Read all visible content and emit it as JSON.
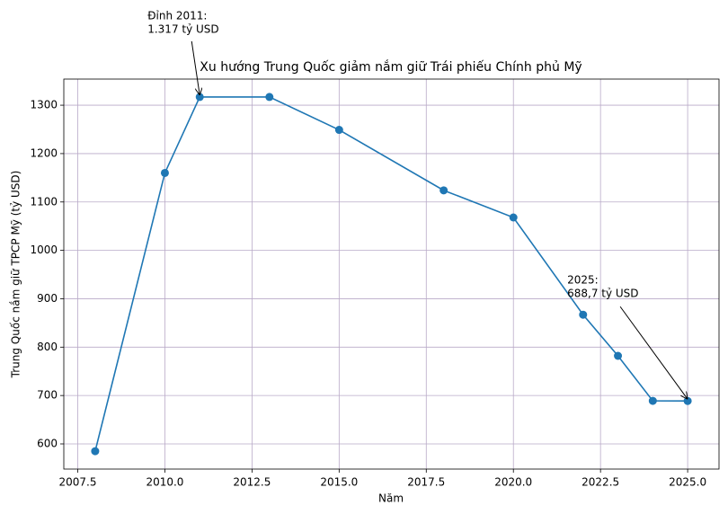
{
  "chart_data": {
    "type": "line",
    "title": "Xu hướng Trung Quốc giảm nắm giữ Trái phiếu Chính phủ Mỹ",
    "x_label": "Năm",
    "y_label": "Trung Quốc nắm giữ TPCP Mỹ (tỷ USD)",
    "x": [
      2008,
      2010,
      2011,
      2013,
      2015,
      2018,
      2020,
      2022,
      2023,
      2024,
      2025
    ],
    "series": [
      {
        "name": "TPCP Mỹ",
        "color": "#1f77b4",
        "values": [
          585,
          1160,
          1317,
          1317,
          1249,
          1124,
          1068,
          867,
          782,
          689,
          688.7
        ]
      }
    ],
    "xlim": [
      2007.1,
      2025.9
    ],
    "ylim": [
      548,
      1354
    ],
    "xticks": [
      2007.5,
      {
        "value": 2010,
        "label": "2010.0"
      },
      2012.5,
      {
        "value": 2015,
        "label": "2015.0"
      },
      2017.5,
      {
        "value": 2020,
        "label": "2020.0"
      },
      2022.5,
      {
        "value": 2025,
        "label": "2025.0"
      }
    ],
    "yticks": [
      600,
      700,
      800,
      900,
      1000,
      1100,
      1200,
      1300
    ],
    "grid": true,
    "annotations": [
      {
        "text": [
          "Đỉnh 2011:",
          "1.317 tỷ USD"
        ],
        "xy": [
          2011,
          1317
        ]
      },
      {
        "text": [
          "2025:",
          "688,7 tỷ USD"
        ],
        "xy": [
          2025,
          688.7
        ]
      }
    ]
  }
}
